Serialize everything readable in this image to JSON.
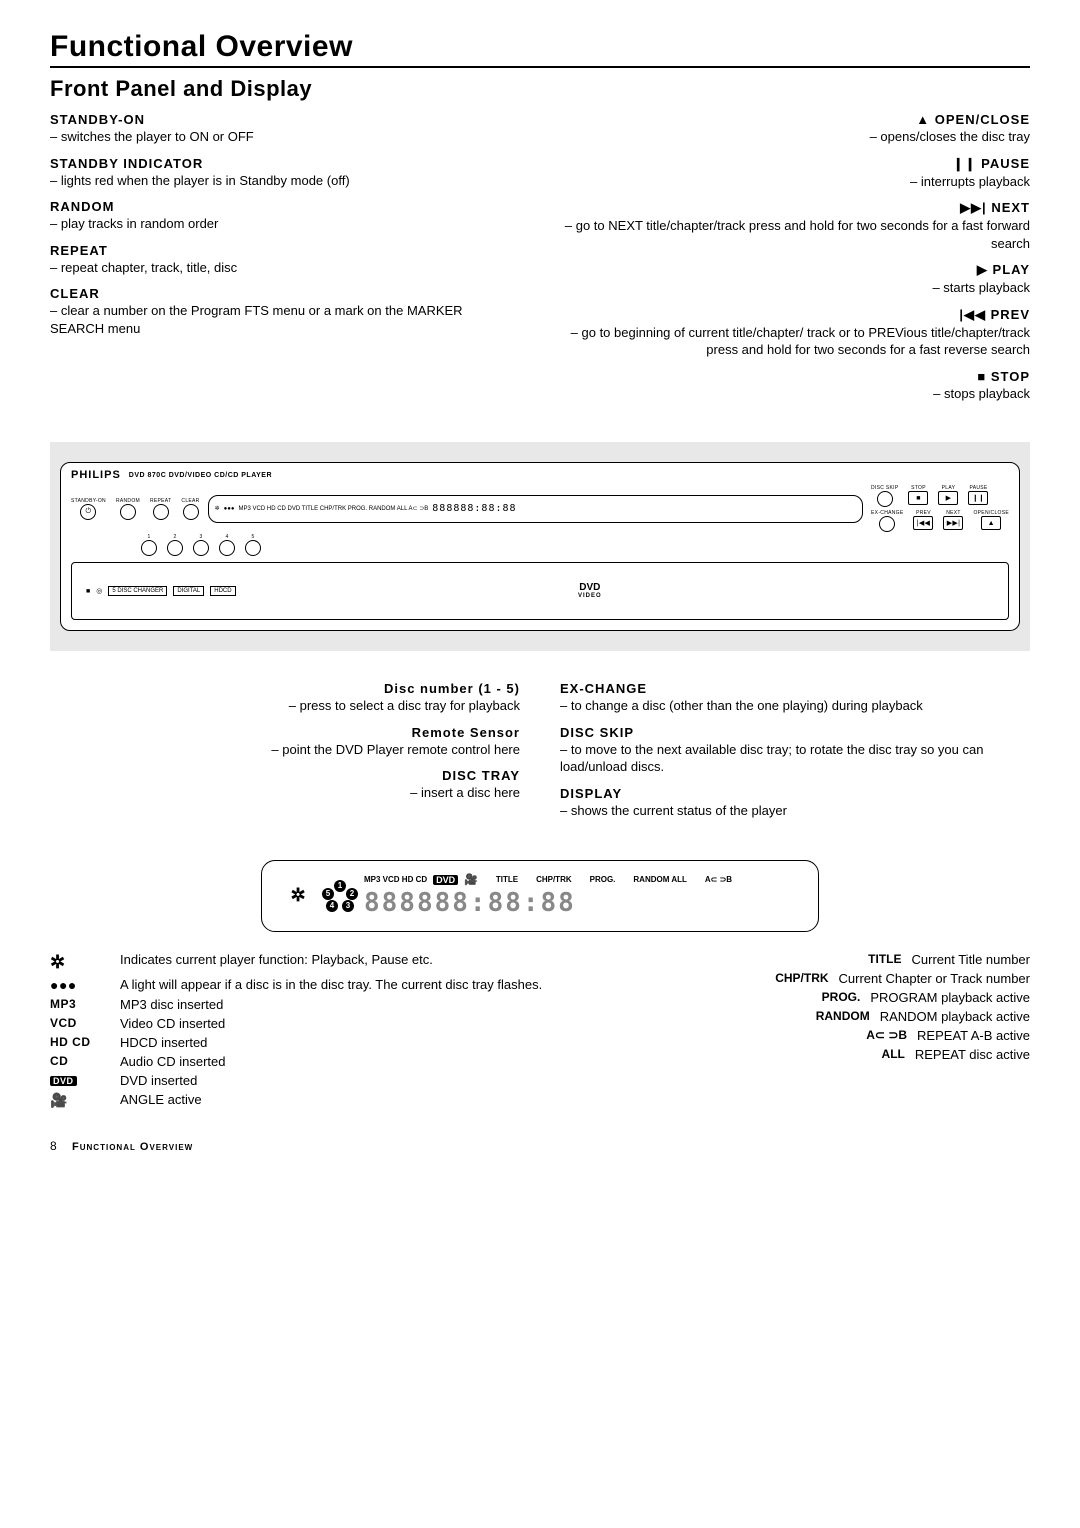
{
  "page": {
    "title": "Functional Overview",
    "subtitle": "Front Panel and Display",
    "footer_page": "8",
    "footer_text": "Functional Overview"
  },
  "left_items": [
    {
      "title": "STANDBY-ON",
      "desc": "– switches the player to ON or OFF"
    },
    {
      "title": "STANDBY INDICATOR",
      "desc": "– lights red when the player is in Standby mode (off)"
    },
    {
      "title": "RANDOM",
      "desc": "– play tracks in random order"
    },
    {
      "title": "REPEAT",
      "desc": "– repeat chapter, track, title, disc"
    },
    {
      "title": "CLEAR",
      "desc": "– clear a number on the Program FTS menu or a mark on the MARKER SEARCH menu"
    }
  ],
  "right_items": [
    {
      "symbol": "▲",
      "title": "OPEN/CLOSE",
      "desc": "– opens/closes the disc tray"
    },
    {
      "symbol": "❙❙",
      "title": "PAUSE",
      "desc": "– interrupts playback"
    },
    {
      "symbol": "▶▶|",
      "title": "NEXT",
      "desc": "– go to NEXT title/chapter/track press and hold for two seconds for a fast forward search"
    },
    {
      "symbol": "▶",
      "title": "PLAY",
      "desc": "– starts playback"
    },
    {
      "symbol": "|◀◀",
      "title": "PREV",
      "desc": "– go to beginning of current title/chapter/ track or to PREVious title/chapter/track press and hold for two seconds for a fast reverse search"
    },
    {
      "symbol": "■",
      "title": "STOP",
      "desc": "– stops playback"
    }
  ],
  "bottom_left": [
    {
      "title": "Disc number (1 - 5)",
      "desc": "– press to select a disc tray for playback"
    },
    {
      "title": "Remote Sensor",
      "desc": "– point the DVD Player remote control here"
    },
    {
      "title": "DISC TRAY",
      "desc": "– insert a disc here"
    }
  ],
  "bottom_right": [
    {
      "title": "EX-CHANGE",
      "desc": "– to change a disc (other than the one playing) during playback"
    },
    {
      "title": "DISC SKIP",
      "desc": "– to move to the next available disc tray; to rotate the disc tray so you can load/unload discs."
    },
    {
      "title": "DISPLAY",
      "desc": "– shows the current status of the player"
    }
  ],
  "panel": {
    "brand": "PHILIPS",
    "model_text": "DVD 870C   DVD/VIDEO CD/CD PLAYER",
    "left_buttons": [
      "STANDBY-ON",
      "RANDOM",
      "REPEAT",
      "CLEAR"
    ],
    "disc_buttons": [
      "1",
      "2",
      "3",
      "4",
      "5"
    ],
    "right_top": [
      "DISC SKIP",
      "STOP",
      "PLAY",
      "PAUSE"
    ],
    "right_bottom": [
      "EX-CHANGE",
      "PREV",
      "NEXT",
      "OPEN/CLOSE"
    ],
    "display_labels": "MP3 VCD HD CD DVD   TITLE  CHP/TRK  PROG.  RANDOM ALL A⊂ ⊃B",
    "seg": "888888:88:88",
    "tray_logos_left": [
      "■",
      "◎",
      "5 DISC CHANGER",
      "DIGITAL",
      "HDCD"
    ],
    "dvd_logo": "DVD",
    "dvd_sub": "VIDEO"
  },
  "zoom": {
    "labels": "MP3 VCD HD CD",
    "dvd_badge": "DVD",
    "col_labels": [
      "TITLE",
      "CHP/TRK",
      "PROG.",
      "RANDOM ALL",
      "A⊂ ⊃B"
    ],
    "seg": "888888:88:88",
    "dots": [
      "1",
      "2",
      "3",
      "4",
      "5"
    ]
  },
  "legend_left": [
    {
      "label": "",
      "icon": "rotate",
      "desc": "Indicates current player function: Playback, Pause etc."
    },
    {
      "label": "",
      "icon": "dots",
      "desc": "A light will appear if a disc is in the disc tray. The current disc tray flashes."
    },
    {
      "label": "MP3",
      "desc": "MP3 disc inserted"
    },
    {
      "label": "VCD",
      "desc": "Video CD inserted"
    },
    {
      "label": "HD CD",
      "desc": "HDCD inserted"
    },
    {
      "label": "CD",
      "desc": "Audio CD inserted"
    },
    {
      "label": "",
      "icon": "dvd",
      "desc": "DVD inserted"
    },
    {
      "label": "",
      "icon": "camera",
      "desc": "ANGLE active"
    }
  ],
  "legend_right": [
    {
      "label": "TITLE",
      "desc": "Current Title number"
    },
    {
      "label": "CHP/TRK",
      "desc": "Current Chapter or Track number"
    },
    {
      "label": "PROG.",
      "desc": "PROGRAM playback active"
    },
    {
      "label": "RANDOM",
      "desc": "RANDOM playback active"
    },
    {
      "label": "A⊂ ⊃B",
      "desc": "REPEAT A-B active"
    },
    {
      "label": "ALL",
      "desc": "REPEAT disc active"
    }
  ],
  "colors": {
    "text": "#000000",
    "bg": "#ffffff",
    "panel_bg": "#e8e8e8",
    "seg_dim": "#888888"
  }
}
